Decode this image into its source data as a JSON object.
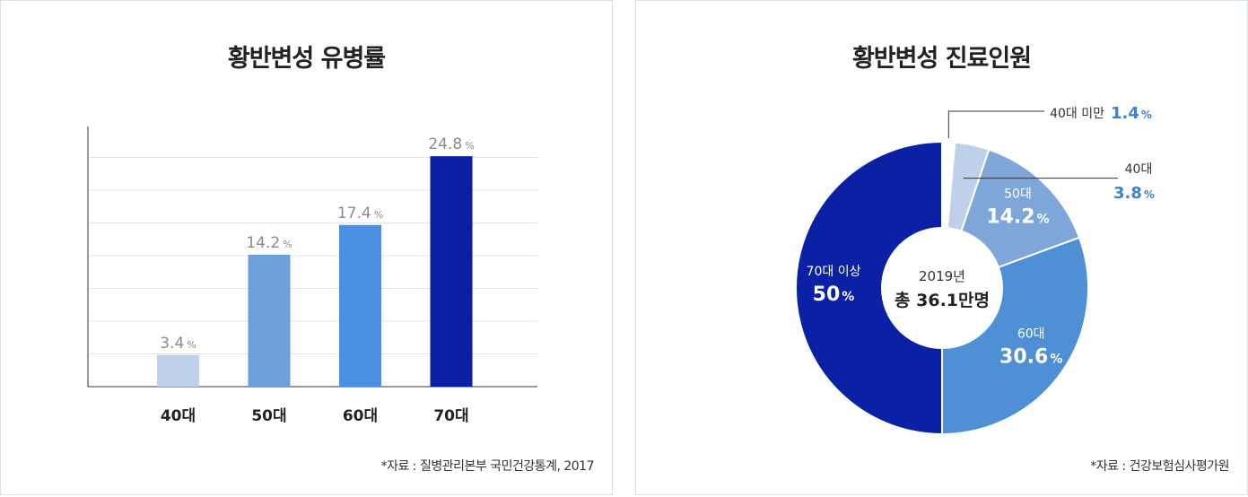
{
  "colors": {
    "bar_40s": "#bfd1ea",
    "bar_50s": "#6f9fd8",
    "bar_60s": "#4a90e2",
    "bar_70s": "#0a1fa6",
    "pie_lt40": "#ffffff",
    "pie_40s": "#bfd1ea",
    "pie_50s": "#7fa6d8",
    "pie_60s": "#4f8fd6",
    "pie_70plus": "#0a21a6",
    "value_gray": "#8a8a8a",
    "accent_blue": "#3f7fd0"
  },
  "left": {
    "title": "황반변성 유병률",
    "source": "*자료 : 질병관리본부 국민건강통계, 2017"
  },
  "right": {
    "title": "황반변성 진료인원",
    "source": "*자료 : 건강보험심사평가원",
    "center_year": "2019년",
    "center_total": "총 36.1만명"
  },
  "chart_data": [
    {
      "type": "bar",
      "title": "황반변성 유병률",
      "categories": [
        "40대",
        "50대",
        "60대",
        "70대"
      ],
      "values": [
        3.4,
        14.2,
        17.4,
        24.8
      ],
      "value_labels": [
        "3.4",
        "14.2",
        "17.4",
        "24.8"
      ],
      "unit": "%",
      "ylim": [
        0,
        28
      ],
      "grid": true,
      "xlabel": "",
      "ylabel": ""
    },
    {
      "type": "pie",
      "variant": "donut",
      "title": "황반변성 진료인원",
      "slices": [
        {
          "label": "40대 미만",
          "value": 1.4,
          "value_label": "1.4",
          "unit": "%",
          "color": "#ffffff"
        },
        {
          "label": "40대",
          "value": 3.8,
          "value_label": "3.8",
          "unit": "%",
          "color": "#bfd1ea"
        },
        {
          "label": "50대",
          "value": 14.2,
          "value_label": "14.2",
          "unit": "%",
          "color": "#7fa6d8"
        },
        {
          "label": "60대",
          "value": 30.6,
          "value_label": "30.6",
          "unit": "%",
          "color": "#4f8fd6"
        },
        {
          "label": "70대 이상",
          "value": 50,
          "value_label": "50",
          "unit": "%",
          "color": "#0a21a6"
        }
      ]
    }
  ]
}
